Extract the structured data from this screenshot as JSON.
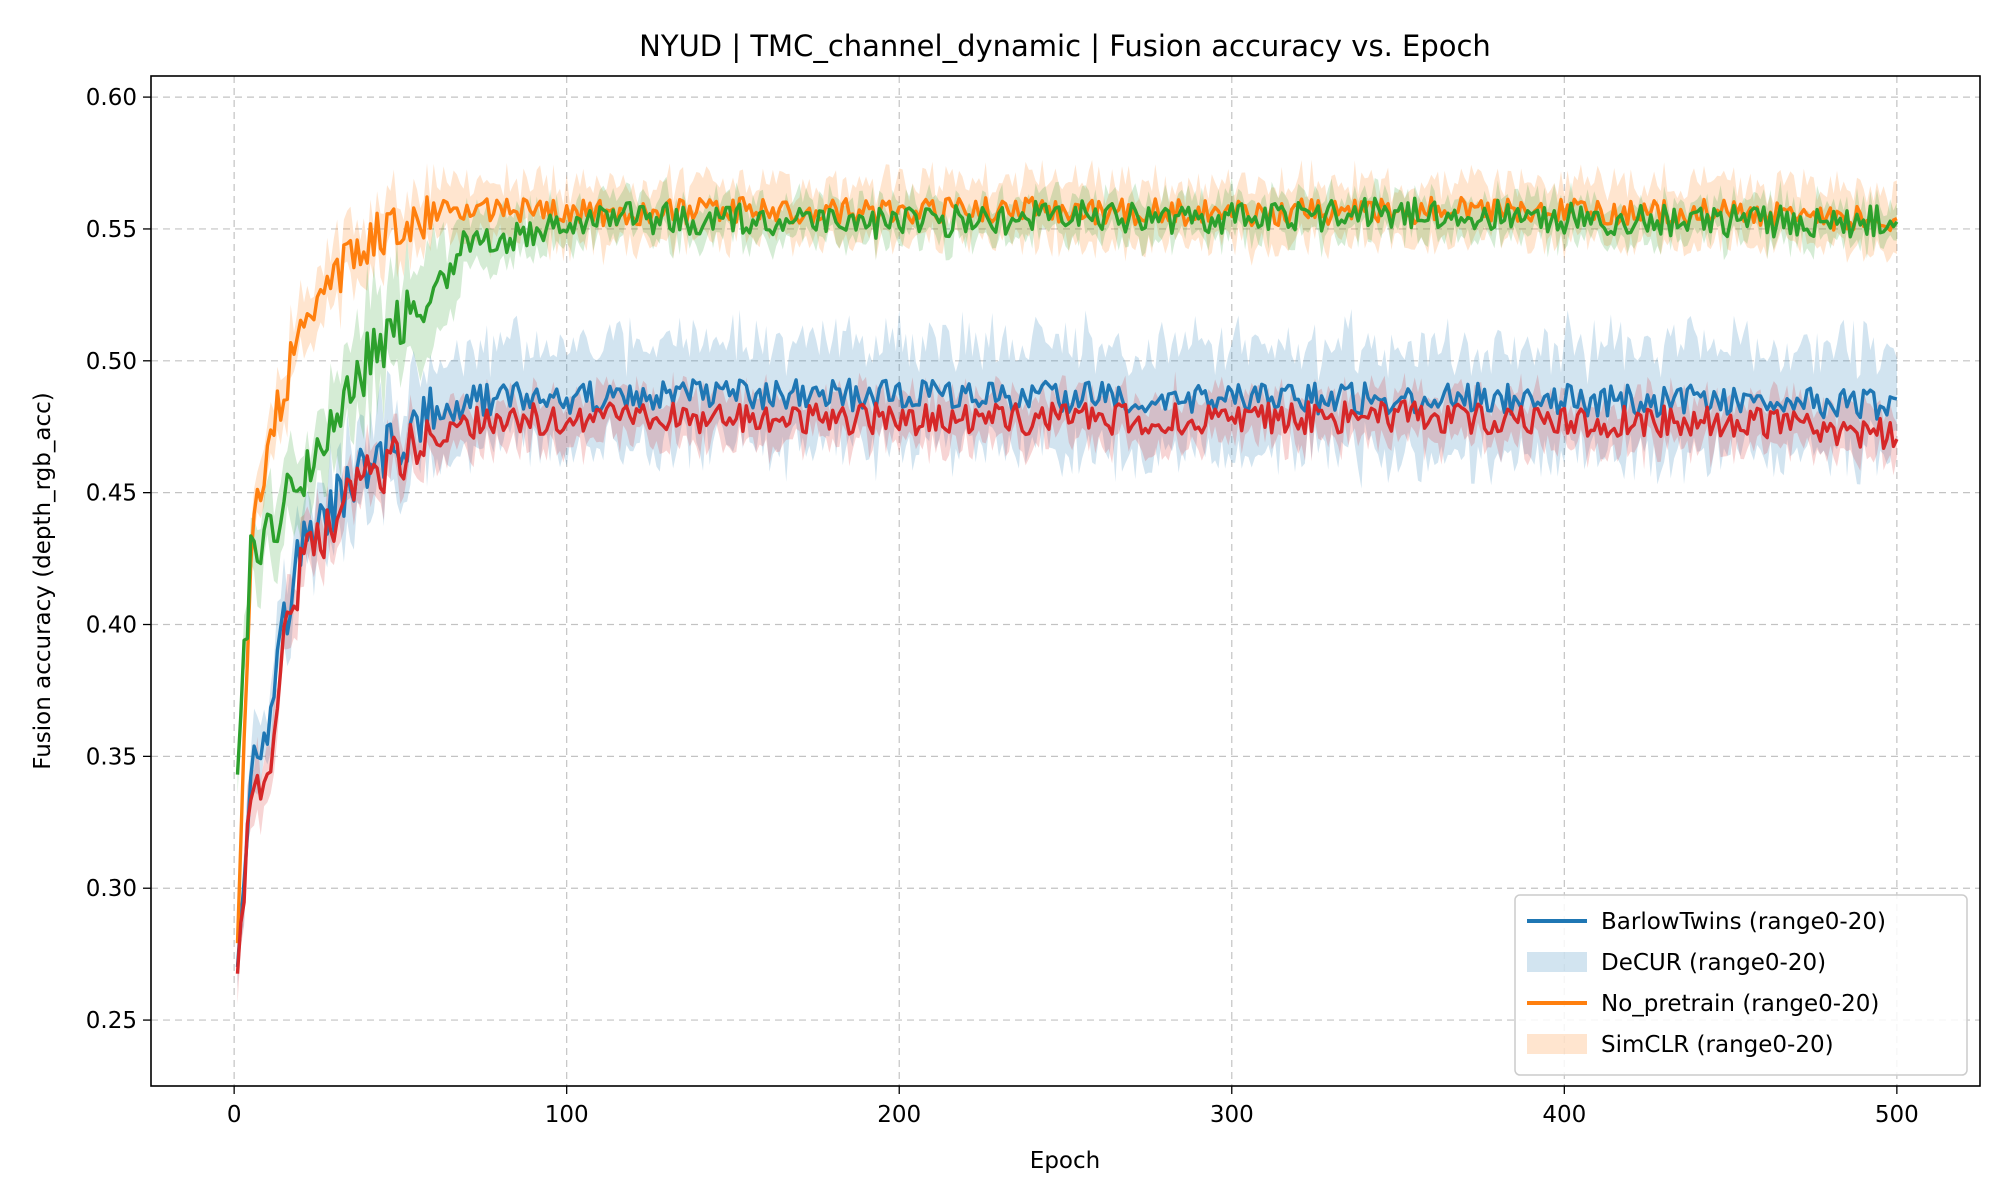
{
  "chart_data": {
    "type": "line",
    "title": "NYUD | TMC_channel_dynamic | Fusion accuracy vs. Epoch",
    "xlabel": "Epoch",
    "ylabel": "Fusion accuracy (depth_rgb_acc)",
    "xlim": [
      -25,
      525
    ],
    "ylim": [
      0.225,
      0.608
    ],
    "x_ticks": [
      0,
      100,
      200,
      300,
      400,
      500
    ],
    "y_ticks": [
      0.25,
      0.3,
      0.35,
      0.4,
      0.45,
      0.5,
      0.55,
      0.6
    ],
    "x_tick_labels": [
      "0",
      "100",
      "200",
      "300",
      "400",
      "500"
    ],
    "y_tick_labels": [
      "0.25",
      "0.30",
      "0.35",
      "0.40",
      "0.45",
      "0.50",
      "0.55",
      "0.60"
    ],
    "grid": true,
    "legend_position": "lower-right",
    "legend": [
      {
        "label": "BarlowTwins (range0-20)",
        "kind": "line",
        "color": "#1f77b4"
      },
      {
        "label": "DeCUR (range0-20)",
        "kind": "band",
        "color": "#1f77b4"
      },
      {
        "label": "No_pretrain (range0-20)",
        "kind": "line",
        "color": "#ff7f0e"
      },
      {
        "label": "SimCLR (range0-20)",
        "kind": "band",
        "color": "#ff7f0e"
      }
    ],
    "series": [
      {
        "color": "#1f77b4",
        "x": [
          1,
          5,
          10,
          15,
          20,
          30,
          40,
          50,
          60,
          70,
          80,
          100,
          150,
          200,
          250,
          300,
          350,
          400,
          450,
          500
        ],
        "y": [
          0.275,
          0.345,
          0.365,
          0.4,
          0.428,
          0.445,
          0.46,
          0.47,
          0.48,
          0.484,
          0.486,
          0.486,
          0.487,
          0.487,
          0.486,
          0.485,
          0.486,
          0.485,
          0.485,
          0.483
        ],
        "band": [
          0.012,
          0.015,
          0.015,
          0.015,
          0.015,
          0.015,
          0.018,
          0.018,
          0.018,
          0.02,
          0.02,
          0.02,
          0.022,
          0.022,
          0.022,
          0.022,
          0.022,
          0.022,
          0.022,
          0.022
        ],
        "noise": 0.006
      },
      {
        "color": "#ff7f0e",
        "x": [
          1,
          5,
          10,
          15,
          20,
          25,
          30,
          40,
          50,
          60,
          70,
          80,
          100,
          150,
          200,
          250,
          300,
          350,
          400,
          450,
          500
        ],
        "y": [
          0.282,
          0.43,
          0.468,
          0.49,
          0.51,
          0.522,
          0.532,
          0.545,
          0.552,
          0.556,
          0.557,
          0.557,
          0.556,
          0.557,
          0.557,
          0.557,
          0.556,
          0.557,
          0.557,
          0.556,
          0.553
        ],
        "band": [
          0.01,
          0.012,
          0.012,
          0.012,
          0.012,
          0.012,
          0.012,
          0.012,
          0.012,
          0.012,
          0.012,
          0.012,
          0.012,
          0.012,
          0.012,
          0.012,
          0.012,
          0.012,
          0.012,
          0.012,
          0.012
        ],
        "noise": 0.005
      },
      {
        "color": "#2ca02c",
        "x": [
          1,
          5,
          10,
          15,
          20,
          30,
          40,
          50,
          60,
          70,
          80,
          90,
          100,
          150,
          200,
          250,
          300,
          350,
          400,
          450,
          500
        ],
        "y": [
          0.345,
          0.425,
          0.432,
          0.445,
          0.455,
          0.475,
          0.5,
          0.515,
          0.525,
          0.545,
          0.545,
          0.548,
          0.554,
          0.554,
          0.552,
          0.555,
          0.554,
          0.556,
          0.554,
          0.553,
          0.553
        ],
        "band": [
          0.008,
          0.012,
          0.015,
          0.015,
          0.015,
          0.015,
          0.02,
          0.02,
          0.02,
          0.012,
          0.01,
          0.01,
          0.008,
          0.008,
          0.008,
          0.008,
          0.008,
          0.008,
          0.008,
          0.008,
          0.008
        ],
        "noise": 0.006
      },
      {
        "color": "#d62728",
        "x": [
          1,
          5,
          10,
          15,
          20,
          30,
          40,
          50,
          60,
          70,
          80,
          100,
          150,
          200,
          250,
          300,
          350,
          400,
          450,
          500
        ],
        "y": [
          0.268,
          0.33,
          0.345,
          0.39,
          0.42,
          0.44,
          0.455,
          0.465,
          0.47,
          0.476,
          0.478,
          0.478,
          0.478,
          0.478,
          0.478,
          0.478,
          0.479,
          0.477,
          0.477,
          0.472
        ],
        "band": [
          0.01,
          0.012,
          0.012,
          0.012,
          0.012,
          0.01,
          0.01,
          0.01,
          0.01,
          0.01,
          0.01,
          0.01,
          0.01,
          0.01,
          0.01,
          0.01,
          0.01,
          0.01,
          0.01,
          0.01
        ],
        "noise": 0.006
      }
    ]
  }
}
